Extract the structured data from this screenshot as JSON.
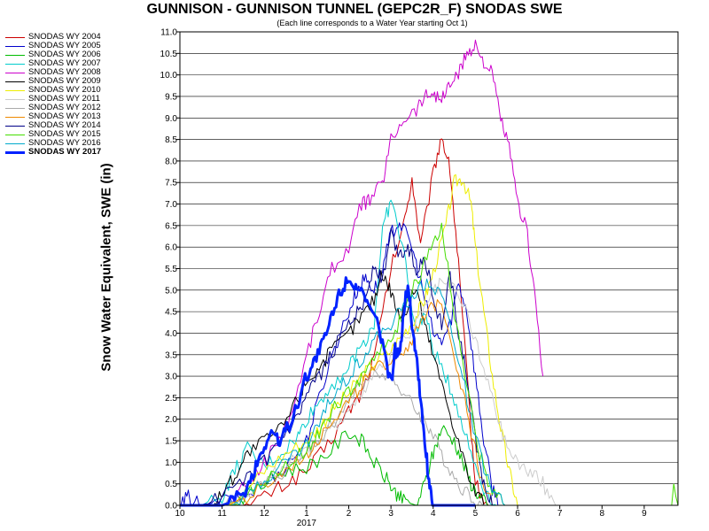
{
  "chart_data": {
    "type": "line",
    "title": "GUNNISON - GUNNISON TUNNEL (GEPC2R_F) SNODAS SWE",
    "subtitle": "(Each line corresponds to a Water Year starting Oct 1)",
    "ylabel": "Snow Water Equivalent, SWE (in)",
    "xlabel": "",
    "ylim": [
      0,
      11
    ],
    "yticks": [
      "0.0",
      "0.5",
      "1.0",
      "1.5",
      "2.0",
      "2.5",
      "3.0",
      "3.5",
      "4.0",
      "4.5",
      "5.0",
      "5.5",
      "6.0",
      "6.5",
      "7.0",
      "7.5",
      "8.0",
      "8.5",
      "9.0",
      "9.5",
      "10.0",
      "10.5",
      "11.0"
    ],
    "xticks": [
      "10",
      "11",
      "12",
      "1",
      "2",
      "3",
      "4",
      "5",
      "6",
      "7",
      "8",
      "9"
    ],
    "xsublabel": "2017",
    "grid": true,
    "legend_position": "top-left",
    "series": [
      {
        "name": "SNODAS WY 2004",
        "color": "#cc0000",
        "width": 1,
        "x": [
          10.0,
          11.0,
          11.5,
          12.0,
          12.5,
          13.0,
          13.5,
          14.0,
          14.3,
          14.6,
          15.0,
          15.3,
          15.5,
          15.7,
          16.0,
          16.2,
          16.4,
          16.6,
          16.8,
          17.0,
          17.3
        ],
        "y": [
          0,
          0,
          0,
          0.2,
          0.5,
          0.8,
          1.4,
          2.2,
          2.6,
          3.4,
          5.5,
          6.5,
          7.6,
          6.0,
          7.7,
          8.6,
          7.8,
          5.6,
          3.0,
          0.5,
          0
        ]
      },
      {
        "name": "SNODAS WY 2005",
        "color": "#0000cc",
        "width": 1,
        "x": [
          10.0,
          10.2,
          10.5,
          11.0,
          11.5,
          12.0,
          12.5,
          13.0,
          13.3,
          13.6,
          14.0,
          14.2,
          14.4,
          14.6,
          14.8,
          15.0,
          15.2,
          15.5,
          15.7,
          16.0,
          16.2,
          16.4,
          16.6,
          16.8,
          17.0,
          17.2,
          17.4,
          17.6
        ],
        "y": [
          0,
          0.2,
          0,
          0.1,
          0.2,
          0.5,
          0.9,
          1.5,
          2.5,
          3.5,
          4.5,
          5.0,
          5.3,
          5.0,
          5.5,
          6.3,
          6.6,
          6.0,
          5.2,
          4.0,
          3.8,
          4.2,
          5.2,
          4.5,
          3.0,
          1.5,
          0.4,
          0
        ]
      },
      {
        "name": "SNODAS WY 2006",
        "color": "#00bb00",
        "width": 1,
        "x": [
          10.0,
          11.0,
          11.5,
          12.0,
          12.5,
          13.0,
          13.5,
          14.0,
          14.3,
          14.6,
          14.9,
          15.1,
          15.3,
          15.6,
          15.8,
          16.0,
          16.2,
          16.5,
          16.7,
          16.9,
          17.1,
          17.3
        ],
        "y": [
          0,
          0,
          0.2,
          0.5,
          0.8,
          0.9,
          1.2,
          1.7,
          1.5,
          1.0,
          0.6,
          0.3,
          0.1,
          0,
          0.5,
          1.2,
          1.8,
          1.5,
          1.0,
          0.5,
          0.2,
          0
        ]
      },
      {
        "name": "SNODAS WY 2007",
        "color": "#00cccc",
        "width": 1,
        "x": [
          10.0,
          10.5,
          11.0,
          11.3,
          11.6,
          12.0,
          12.4,
          12.8,
          13.0,
          13.3,
          13.6,
          14.0,
          14.3,
          14.6,
          14.8,
          15.0,
          15.3,
          15.6,
          15.8,
          16.0,
          16.3,
          16.6,
          16.9,
          17.2,
          17.5
        ],
        "y": [
          0,
          0,
          0.2,
          0.8,
          1.3,
          0.9,
          1.2,
          1.6,
          2.0,
          2.4,
          2.8,
          3.2,
          3.7,
          4.2,
          6.4,
          7.1,
          5.9,
          4.0,
          4.5,
          3.6,
          3.0,
          2.2,
          1.2,
          0.4,
          0
        ]
      },
      {
        "name": "SNODAS WY 2008",
        "color": "#cc00cc",
        "width": 1,
        "x": [
          10.0,
          11.0,
          11.3,
          11.6,
          12.0,
          12.3,
          12.6,
          13.0,
          13.3,
          13.6,
          14.0,
          14.3,
          14.5,
          14.8,
          15.0,
          15.3,
          15.6,
          15.8,
          16.0,
          16.2,
          16.4,
          16.6,
          16.8,
          17.0,
          17.2,
          17.4,
          17.6,
          17.8,
          18.0,
          18.2,
          18.4,
          18.6
        ],
        "y": [
          0,
          0,
          0.2,
          0.5,
          1.0,
          1.5,
          2.0,
          3.5,
          4.5,
          5.5,
          6.0,
          7.0,
          7.1,
          7.5,
          8.5,
          9.0,
          9.2,
          9.5,
          9.6,
          9.4,
          9.8,
          10.0,
          10.5,
          10.7,
          10.3,
          10.0,
          9.0,
          8.3,
          7.0,
          6.5,
          5.0,
          3.0
        ]
      },
      {
        "name": "SNODAS WY 2009",
        "color": "#000000",
        "width": 1,
        "x": [
          10.0,
          10.8,
          11.0,
          11.3,
          11.6,
          12.0,
          12.4,
          12.8,
          13.0,
          13.3,
          13.6,
          14.0,
          14.3,
          14.6,
          14.8,
          15.0,
          15.2,
          15.4,
          15.6,
          15.8,
          16.0,
          16.3,
          16.6,
          16.9,
          17.2
        ],
        "y": [
          0,
          0,
          0.3,
          0.7,
          1.2,
          1.5,
          1.8,
          2.5,
          2.9,
          3.2,
          3.6,
          4.0,
          4.4,
          4.8,
          5.4,
          5.0,
          4.4,
          4.6,
          5.1,
          4.2,
          3.5,
          2.5,
          1.5,
          0.5,
          0
        ]
      },
      {
        "name": "SNODAS WY 2010",
        "color": "#eeee00",
        "width": 1,
        "x": [
          10.0,
          11.0,
          11.5,
          12.0,
          12.5,
          13.0,
          13.3,
          13.6,
          14.0,
          14.3,
          14.6,
          15.0,
          15.3,
          15.6,
          15.8,
          16.0,
          16.3,
          16.5,
          16.7,
          16.9,
          17.0,
          17.2,
          17.4,
          17.6,
          17.8,
          18.0
        ],
        "y": [
          0,
          0,
          0.3,
          0.8,
          1.2,
          1.5,
          1.8,
          2.2,
          2.6,
          3.0,
          3.3,
          3.6,
          4.0,
          4.4,
          4.8,
          5.4,
          6.5,
          7.5,
          7.6,
          7.0,
          6.0,
          4.5,
          3.0,
          1.8,
          0.8,
          0
        ]
      },
      {
        "name": "SNODAS WY 2011",
        "color": "#cccccc",
        "width": 1,
        "x": [
          10.0,
          11.0,
          11.5,
          12.0,
          12.5,
          13.0,
          13.3,
          13.6,
          14.0,
          14.3,
          14.6,
          15.0,
          15.3,
          15.6,
          15.9,
          16.2,
          16.5,
          16.8,
          17.1,
          17.4,
          17.7,
          18.0,
          18.3,
          18.6,
          18.9
        ],
        "y": [
          0,
          0,
          0.2,
          0.6,
          0.9,
          1.2,
          1.5,
          1.8,
          2.2,
          2.6,
          3.0,
          3.4,
          3.8,
          4.2,
          4.8,
          5.2,
          5.0,
          4.5,
          3.5,
          2.5,
          1.5,
          1.0,
          0.8,
          0.5,
          0
        ]
      },
      {
        "name": "SNODAS WY 2012",
        "color": "#aaaaaa",
        "width": 1,
        "x": [
          10.0,
          11.0,
          11.5,
          12.0,
          12.5,
          13.0,
          13.3,
          13.6,
          14.0,
          14.3,
          14.6,
          15.0,
          15.3,
          15.6,
          15.8,
          16.0,
          16.3,
          16.6,
          16.9,
          17.2
        ],
        "y": [
          0,
          0,
          0.2,
          0.5,
          0.8,
          1.2,
          1.5,
          1.9,
          2.4,
          2.8,
          3.2,
          3.0,
          2.6,
          2.2,
          2.0,
          1.6,
          1.0,
          0.5,
          0.2,
          0
        ]
      },
      {
        "name": "SNODAS WY 2013",
        "color": "#ee8800",
        "width": 1,
        "x": [
          10.0,
          11.0,
          11.5,
          12.0,
          12.5,
          13.0,
          13.3,
          13.6,
          14.0,
          14.3,
          14.6,
          15.0,
          15.3,
          15.6,
          15.9,
          16.2,
          16.5,
          16.8,
          17.1,
          17.4
        ],
        "y": [
          0,
          0,
          0.1,
          0.4,
          0.8,
          1.2,
          1.6,
          2.0,
          2.4,
          2.8,
          3.1,
          3.4,
          3.6,
          4.0,
          4.5,
          4.8,
          3.5,
          2.2,
          0.8,
          0
        ]
      },
      {
        "name": "SNODAS WY 2014",
        "color": "#000088",
        "width": 1,
        "x": [
          10.0,
          10.5,
          11.0,
          11.5,
          12.0,
          12.4,
          12.8,
          13.0,
          13.3,
          13.6,
          14.0,
          14.2,
          14.4,
          14.6,
          14.8,
          15.0,
          15.2,
          15.4,
          15.6,
          15.8,
          16.0,
          16.2,
          16.4,
          16.6,
          16.8,
          17.0,
          17.2,
          17.4
        ],
        "y": [
          0,
          0,
          0.2,
          0.5,
          1.0,
          1.5,
          2.0,
          2.5,
          3.0,
          3.5,
          4.3,
          4.5,
          4.8,
          5.6,
          5.2,
          6.3,
          5.8,
          6.0,
          5.5,
          5.8,
          4.8,
          4.2,
          5.4,
          4.0,
          3.0,
          1.5,
          0.5,
          0
        ]
      },
      {
        "name": "SNODAS WY 2015",
        "color": "#44dd00",
        "width": 1,
        "x": [
          10.0,
          11.0,
          11.5,
          12.0,
          12.5,
          13.0,
          13.3,
          13.6,
          14.0,
          14.3,
          14.6,
          15.0,
          15.3,
          15.6,
          15.9,
          16.2,
          16.5,
          16.8,
          17.1,
          17.4,
          17.7
        ],
        "y": [
          0,
          0,
          0.2,
          0.5,
          0.9,
          1.3,
          1.7,
          2.2,
          2.6,
          3.0,
          3.5,
          3.8,
          4.5,
          5.2,
          5.8,
          6.5,
          4.5,
          2.8,
          1.2,
          0.3,
          0
        ]
      },
      {
        "name": "SNODAS WY 2016",
        "color": "#00aacc",
        "width": 1,
        "x": [
          10.0,
          11.0,
          11.5,
          12.0,
          12.5,
          13.0,
          13.3,
          13.6,
          14.0,
          14.3,
          14.6,
          15.0,
          15.3,
          15.6,
          15.9,
          16.2,
          16.5,
          16.8,
          17.1,
          17.4,
          17.7
        ],
        "y": [
          0,
          0,
          0.2,
          0.6,
          1.0,
          1.4,
          1.9,
          2.5,
          3.0,
          3.4,
          3.8,
          4.2,
          4.6,
          5.0,
          5.2,
          4.9,
          3.8,
          2.5,
          1.2,
          0.3,
          0
        ]
      },
      {
        "name": "SNODAS WY 2017",
        "color": "#0022ff",
        "width": 3,
        "x": [
          10.0,
          11.0,
          11.3,
          11.6,
          11.8,
          12.0,
          12.2,
          12.4,
          12.6,
          12.8,
          13.0,
          13.2,
          13.4,
          13.6,
          13.8,
          14.0,
          14.2,
          14.4,
          14.6,
          14.8,
          15.0,
          15.1,
          15.2,
          15.3,
          15.4,
          15.5,
          15.6,
          15.7,
          15.8,
          15.9,
          16.0,
          16.2,
          16.4,
          16.6,
          16.8,
          17.0
        ],
        "y": [
          0,
          0,
          0.1,
          0.4,
          0.9,
          1.4,
          1.7,
          1.5,
          1.9,
          2.4,
          3.0,
          3.4,
          3.8,
          4.4,
          5.0,
          5.3,
          5.1,
          4.7,
          4.4,
          3.8,
          2.8,
          3.6,
          3.4,
          4.5,
          5.2,
          4.2,
          3.5,
          2.5,
          1.5,
          0.6,
          0,
          0,
          0,
          0,
          0,
          0
        ]
      }
    ]
  }
}
